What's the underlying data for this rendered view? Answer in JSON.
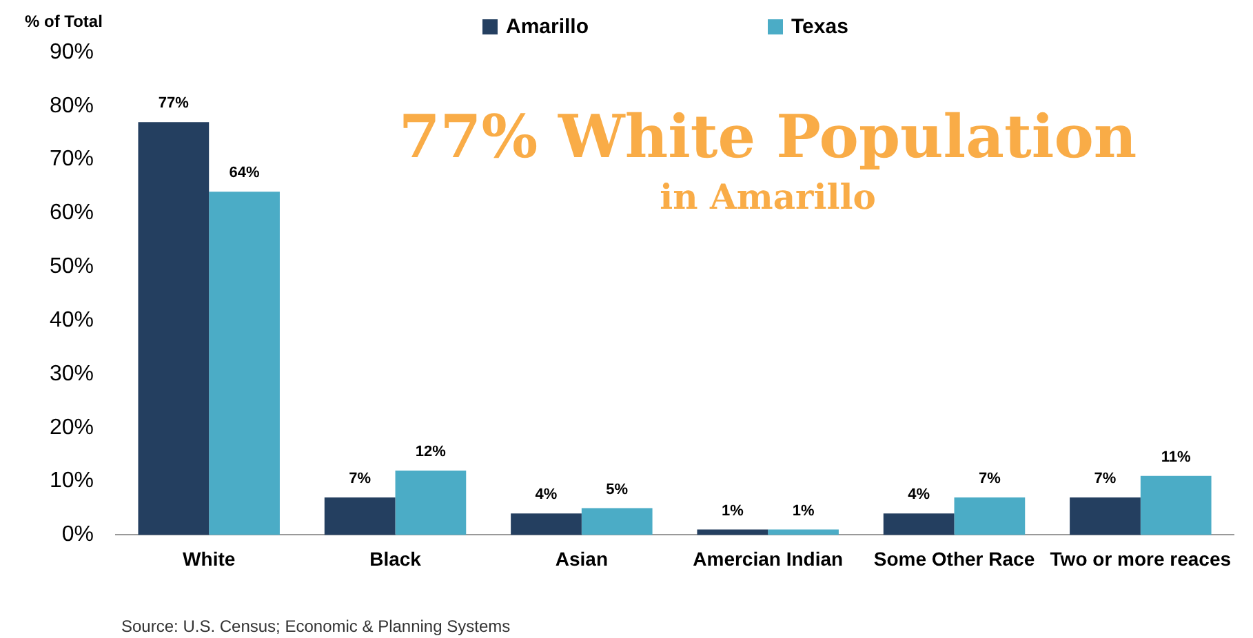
{
  "chart_data": {
    "type": "bar",
    "categories": [
      "White",
      "Black",
      "Asian",
      "Amercian Indian",
      "Some Other Race",
      "Two or more reaces"
    ],
    "series": [
      {
        "name": "Amarillo",
        "color": "#243f60",
        "values": [
          77,
          7,
          4,
          1,
          4,
          7
        ],
        "value_labels": [
          "77%",
          "7%",
          "4%",
          "1%",
          "4%",
          "7%"
        ]
      },
      {
        "name": "Texas",
        "color": "#4bacc6",
        "values": [
          64,
          12,
          5,
          1,
          7,
          11
        ],
        "value_labels": [
          "64%",
          "12%",
          "5%",
          "1%",
          "7%",
          "11%"
        ]
      }
    ],
    "ylim": [
      0,
      90
    ],
    "yticks": [
      {
        "value": 0,
        "label": "0%"
      },
      {
        "value": 10,
        "label": "10%"
      },
      {
        "value": 20,
        "label": "20%"
      },
      {
        "value": 30,
        "label": "30%"
      },
      {
        "value": 40,
        "label": "40%"
      },
      {
        "value": 50,
        "label": "50%"
      },
      {
        "value": 60,
        "label": "60%"
      },
      {
        "value": 70,
        "label": "70%"
      },
      {
        "value": 80,
        "label": "80%"
      },
      {
        "value": 90,
        "label": "90%"
      }
    ],
    "grid": false,
    "legend": "top",
    "annotations": [
      "77% White Population",
      "in Amarillo",
      "Source: U.S. Census; Economic & Planning Systems",
      "% of Total"
    ]
  }
}
